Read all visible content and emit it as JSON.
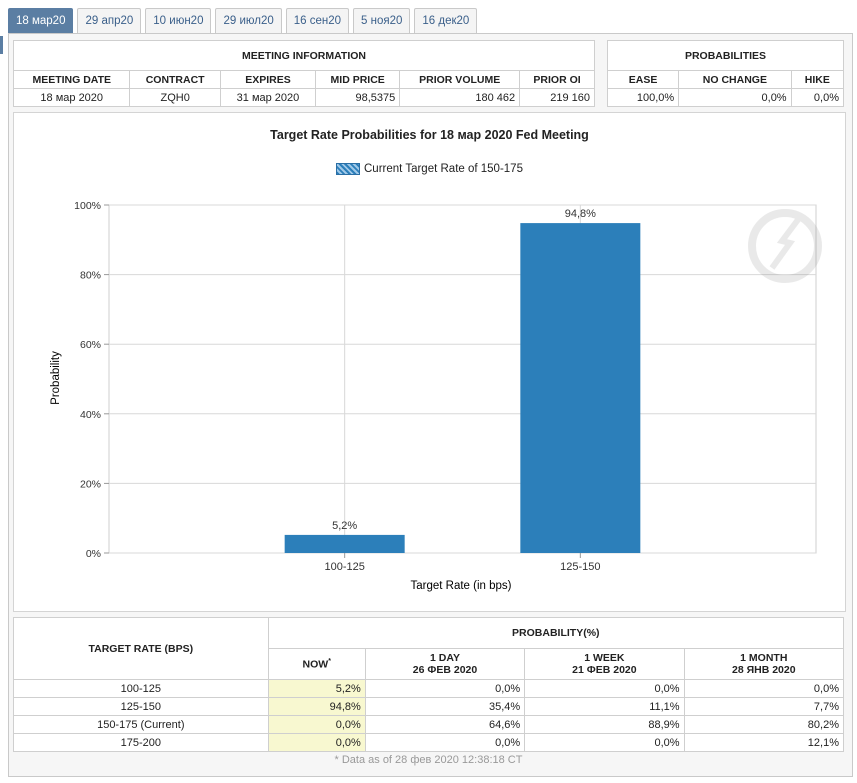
{
  "tabs": [
    "18 мар20",
    "29 апр20",
    "10 июн20",
    "29 июл20",
    "16 сен20",
    "5 ноя20",
    "16 дек20"
  ],
  "meeting_info": {
    "title": "MEETING INFORMATION",
    "headers": [
      "MEETING DATE",
      "CONTRACT",
      "EXPIRES",
      "MID PRICE",
      "PRIOR VOLUME",
      "PRIOR OI"
    ],
    "row": [
      "18 мар 2020",
      "ZQH0",
      "31 мар 2020",
      "98,5375",
      "180 462",
      "219 160"
    ]
  },
  "probabilities": {
    "title": "PROBABILITIES",
    "headers": [
      "EASE",
      "NO CHANGE",
      "HIKE"
    ],
    "row": [
      "100,0%",
      "0,0%",
      "0,0%"
    ]
  },
  "chart_data": {
    "type": "bar",
    "title": "Target Rate Probabilities for 18 мар 2020 Fed Meeting",
    "legend": "Current Target Rate of 150-175",
    "categories": [
      "100-125",
      "125-150"
    ],
    "values": [
      5.2,
      94.8
    ],
    "value_labels": [
      "5,2%",
      "94,8%"
    ],
    "xlabel": "Target Rate (in bps)",
    "ylabel": "Probability",
    "yticks": [
      "0%",
      "20%",
      "40%",
      "60%",
      "80%",
      "100%"
    ],
    "ylim": [
      0,
      100
    ],
    "grid": true,
    "bar_color": "#2c7fba"
  },
  "prob_table": {
    "col_rate": "TARGET RATE (BPS)",
    "col_group": "PROBABILITY(%)",
    "now": "NOW",
    "now_sup": "*",
    "day": [
      "1 DAY",
      "26 ФЕВ 2020"
    ],
    "week": [
      "1 WEEK",
      "21 ФЕВ 2020"
    ],
    "month": [
      "1 MONTH",
      "28 ЯНВ 2020"
    ],
    "rows": [
      [
        "100-125",
        "5,2%",
        "0,0%",
        "0,0%",
        "0,0%"
      ],
      [
        "125-150",
        "94,8%",
        "35,4%",
        "11,1%",
        "7,7%"
      ],
      [
        "150-175 (Current)",
        "0,0%",
        "64,6%",
        "88,9%",
        "80,2%"
      ],
      [
        "175-200",
        "0,0%",
        "0,0%",
        "0,0%",
        "12,1%"
      ]
    ]
  },
  "footnote": "* Data as of 28 фев 2020 12:38:18 CT"
}
